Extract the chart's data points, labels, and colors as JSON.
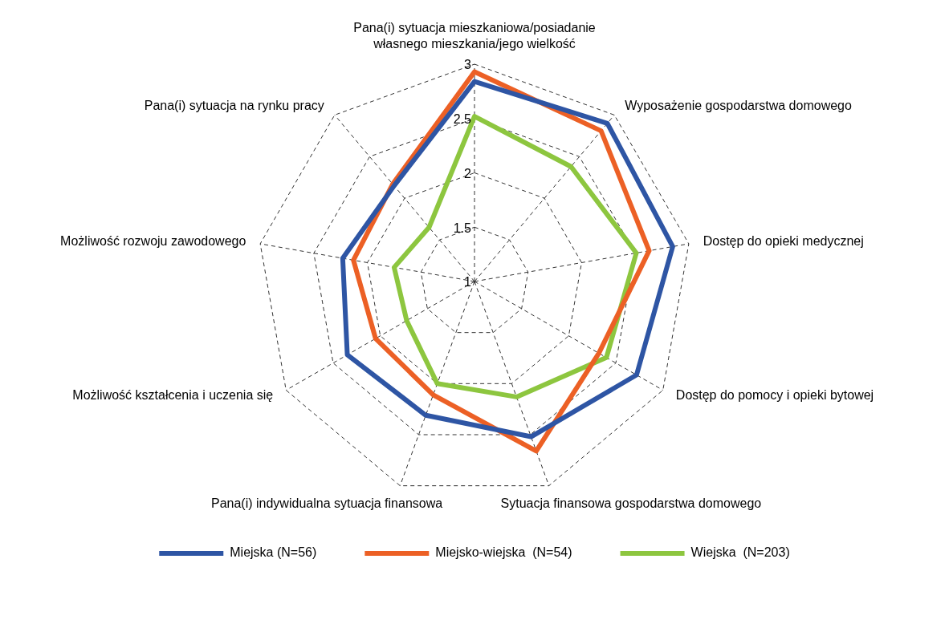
{
  "chart_data": {
    "type": "radar",
    "categories": [
      "Pana(i) sytuacja mieszkaniowa/posiadanie własnego mieszkania/jego wielkość",
      "Wyposażenie gospodarstwa domowego",
      "Dostęp do opieki medycznej",
      "Dostęp do pomocy i opieki bytowej",
      "Sytuacja finansowa gospodarstwa domowego",
      "Pana(i) indywidualna sytuacja finansowa",
      "Możliwość kształcenia i uczenia się",
      "Możliwość rozwoju zawodowego",
      "Pana(i) sytuacja na rynku pracy"
    ],
    "series": [
      {
        "name": "Miejska (N=56)",
        "color": "#2e55a4",
        "values": [
          2.84,
          2.9,
          2.85,
          2.72,
          2.52,
          2.31,
          2.35,
          2.23,
          2.15
        ]
      },
      {
        "name": "Miejsko-wiejska  (N=54)",
        "color": "#ec6025",
        "values": [
          2.93,
          2.81,
          2.63,
          2.32,
          2.66,
          2.11,
          2.05,
          2.13,
          2.17
        ]
      },
      {
        "name": "Wiejska  (N=203)",
        "color": "#8dc63f",
        "values": [
          2.52,
          2.38,
          2.51,
          2.4,
          2.13,
          2.0,
          1.72,
          1.75,
          1.65
        ]
      }
    ],
    "ylim": [
      1,
      3
    ],
    "yticks": [
      1,
      1.5,
      2,
      2.5,
      3
    ],
    "grid": true,
    "legend": "bottom",
    "marker": "none",
    "line_style": "solid"
  }
}
